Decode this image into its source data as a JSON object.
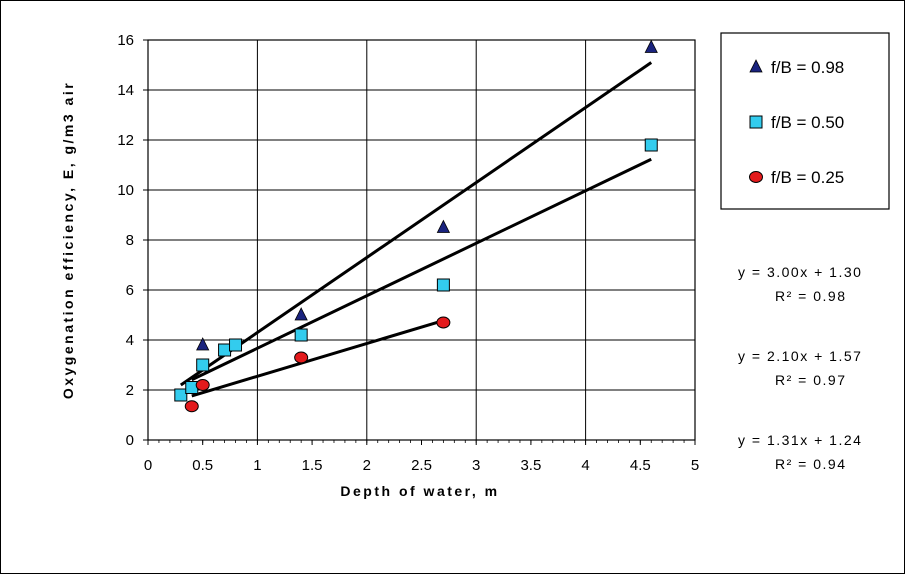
{
  "chart_data": {
    "type": "scatter",
    "xlabel": "Depth of water, m",
    "ylabel": "Oxygenation efficiency, E, g/m3 air",
    "xlim": [
      0,
      5
    ],
    "ylim": [
      0,
      16
    ],
    "x_ticks": [
      "0",
      "0.5",
      "1",
      "1.5",
      "2",
      "2.5",
      "3",
      "3.5",
      "4",
      "4.5",
      "5"
    ],
    "y_ticks": [
      "0",
      "2",
      "4",
      "6",
      "8",
      "10",
      "12",
      "14",
      "16"
    ],
    "grid": true,
    "legend_position": "top-right",
    "series": [
      {
        "name": "f/B = 0.98",
        "marker": "triangle",
        "color": "#1a237e",
        "points": [
          [
            0.5,
            3.8
          ],
          [
            1.4,
            5.0
          ],
          [
            2.7,
            8.5
          ],
          [
            4.6,
            15.7
          ]
        ],
        "trend": {
          "slope": 3.0,
          "intercept": 1.3,
          "x_range": [
            0.3,
            4.6
          ]
        }
      },
      {
        "name": "f/B = 0.50",
        "marker": "square",
        "color": "#33ccee",
        "points": [
          [
            0.3,
            1.8
          ],
          [
            0.4,
            2.1
          ],
          [
            0.5,
            3.0
          ],
          [
            0.7,
            3.6
          ],
          [
            0.8,
            3.8
          ],
          [
            1.4,
            4.2
          ],
          [
            2.7,
            6.2
          ],
          [
            4.6,
            11.8
          ]
        ],
        "trend": {
          "slope": 2.1,
          "intercept": 1.57,
          "x_range": [
            0.4,
            4.6
          ]
        }
      },
      {
        "name": "f/B = 0.25",
        "marker": "circle",
        "color": "#e31a1c",
        "points": [
          [
            0.4,
            1.35
          ],
          [
            0.5,
            2.2
          ],
          [
            1.4,
            3.3
          ],
          [
            2.7,
            4.7
          ]
        ],
        "trend": {
          "slope": 1.31,
          "intercept": 1.24,
          "x_range": [
            0.4,
            2.7
          ]
        }
      }
    ],
    "equations": [
      {
        "eq": "y = 3.00x + 1.30",
        "r2": "R² = 0.98"
      },
      {
        "eq": "y = 2.10x + 1.57",
        "r2": "R² = 0.97"
      },
      {
        "eq": "y = 1.31x + 1.24",
        "r2": "R² = 0.94"
      }
    ]
  }
}
